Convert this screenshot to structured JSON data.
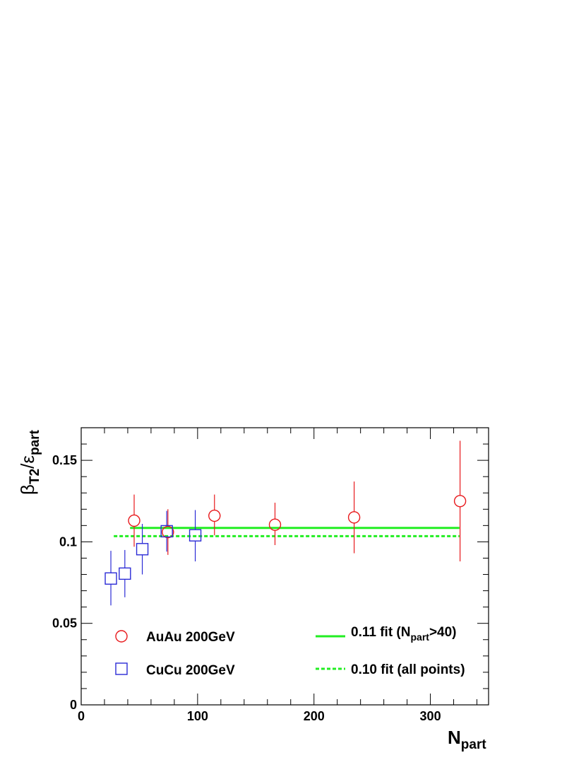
{
  "chart_data": {
    "type": "scatter",
    "xlabel": {
      "main": "N",
      "sub": "part"
    },
    "ylabel": {
      "main": "β",
      "sub1": "T2",
      "sep": "/",
      "main2": "ε",
      "sub2": "part"
    },
    "xlim": [
      0,
      350
    ],
    "ylim": [
      0,
      0.17
    ],
    "x_ticks": [
      0,
      100,
      200,
      300
    ],
    "x_tick_labels": [
      "0",
      "100",
      "200",
      "300"
    ],
    "y_ticks": [
      0,
      0.05,
      0.1,
      0.15
    ],
    "y_tick_labels": [
      "0",
      "0.05",
      "0.1",
      "0.15"
    ],
    "grid": false,
    "series": [
      {
        "name": "AuAu 200GeV",
        "marker": "open-circle",
        "color": "#e8191c",
        "points": [
          {
            "x": 45.5,
            "y": 0.113,
            "ylo": 0.097,
            "yhi": 0.129
          },
          {
            "x": 74.5,
            "y": 0.106,
            "ylo": 0.092,
            "yhi": 0.12
          },
          {
            "x": 114.5,
            "y": 0.116,
            "ylo": 0.104,
            "yhi": 0.129
          },
          {
            "x": 166.5,
            "y": 0.1105,
            "ylo": 0.098,
            "yhi": 0.124
          },
          {
            "x": 234.5,
            "y": 0.115,
            "ylo": 0.093,
            "yhi": 0.137
          },
          {
            "x": 325.5,
            "y": 0.125,
            "ylo": 0.088,
            "yhi": 0.162
          }
        ]
      },
      {
        "name": "CuCu 200GeV",
        "marker": "open-square",
        "color": "#2b2bd6",
        "points": [
          {
            "x": 25.5,
            "y": 0.0775,
            "ylo": 0.061,
            "yhi": 0.0945
          },
          {
            "x": 37.5,
            "y": 0.0805,
            "ylo": 0.066,
            "yhi": 0.095
          },
          {
            "x": 52.5,
            "y": 0.0955,
            "ylo": 0.08,
            "yhi": 0.111
          },
          {
            "x": 73.5,
            "y": 0.1065,
            "ylo": 0.094,
            "yhi": 0.119
          },
          {
            "x": 98.0,
            "y": 0.104,
            "ylo": 0.088,
            "yhi": 0.1195
          }
        ]
      }
    ],
    "fits": [
      {
        "name": "0.11 fit (N_part>40)",
        "y": 0.1085,
        "x_start": 42,
        "x_end": 325,
        "style": "solid",
        "color": "#22ee22"
      },
      {
        "name": "0.10 fit (all points)",
        "y": 0.1035,
        "x_start": 28,
        "x_end": 325,
        "style": "dotted",
        "color": "#22ee22"
      }
    ],
    "legend": {
      "placement": "bottom",
      "entries": [
        {
          "marker": "open-circle",
          "color": "#e8191c",
          "label": "AuAu 200GeV"
        },
        {
          "marker": "open-square",
          "color": "#2b2bd6",
          "label": "CuCu 200GeV"
        },
        {
          "line": "solid",
          "color": "#22ee22",
          "label_pre": "0.11 fit (N",
          "label_sub": "part",
          "label_post": ">40)"
        },
        {
          "line": "dotted",
          "color": "#22ee22",
          "label": "0.10 fit (all points)"
        }
      ]
    }
  }
}
